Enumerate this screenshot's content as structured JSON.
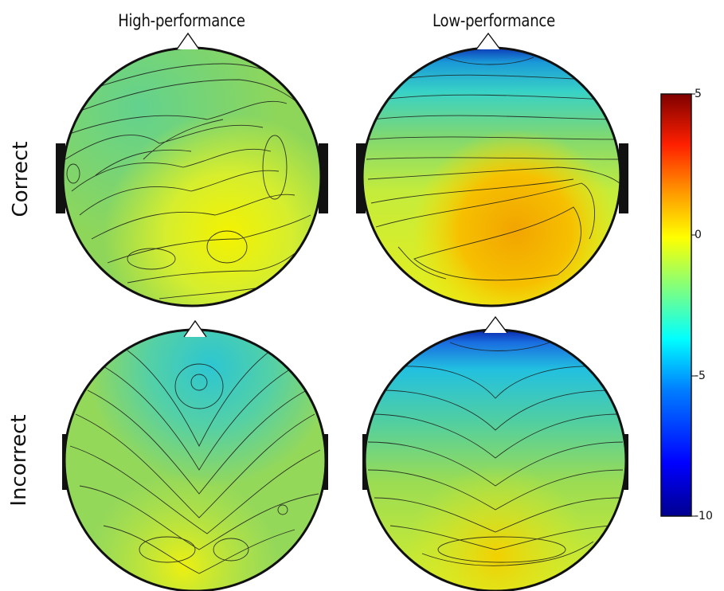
{
  "figure": {
    "columns": [
      "High-performance",
      "Low-performance"
    ],
    "rows": [
      "Correct",
      "Incorrect"
    ]
  },
  "colorbar": {
    "ticks": [
      "5",
      "0",
      "-5",
      "-10"
    ],
    "tick_values": [
      5,
      0,
      -5,
      -10
    ],
    "range": [
      -10,
      5
    ],
    "colormap": [
      "#00008f",
      "#0000ff",
      "#007fff",
      "#00ffff",
      "#7fff7f",
      "#ffff00",
      "#ff7f00",
      "#ff0000",
      "#7f0000"
    ]
  },
  "maps": [
    {
      "row": "Correct",
      "column": "High-performance",
      "colors": {
        "base": "#8ed65a",
        "mid": "#c8ec3a",
        "hi": "#f2f20a",
        "low": "#5ad0a0"
      }
    },
    {
      "row": "Correct",
      "column": "Low-performance",
      "colors": {
        "base": "#c6ea3c",
        "mid": "#86d460",
        "hi": "#f2a800",
        "low": "#0a2fbf"
      }
    },
    {
      "row": "Incorrect",
      "column": "High-performance",
      "colors": {
        "base": "#94d85a",
        "mid": "#6cd68e",
        "hi": "#e8f01a",
        "low": "#3ccbc0"
      }
    },
    {
      "row": "Incorrect",
      "column": "Low-performance",
      "colors": {
        "base": "#a6df4c",
        "mid": "#52cfa0",
        "hi": "#f2d400",
        "low": "#0620a8"
      }
    }
  ]
}
